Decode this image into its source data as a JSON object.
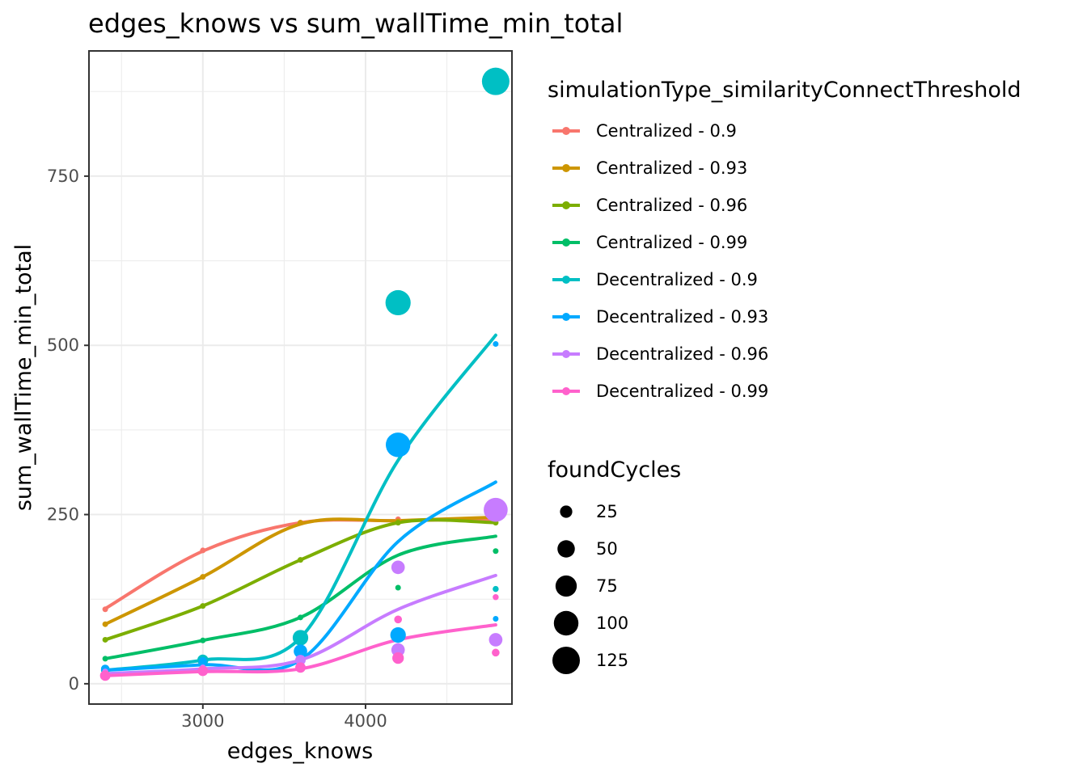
{
  "chart_data": {
    "type": "scatter",
    "title": "edges_knows  vs  sum_wallTime_min_total",
    "xlabel": "edges_knows",
    "ylabel": "sum_wallTime_min_total",
    "xlim": [
      2300,
      4900
    ],
    "ylim": [
      -30,
      935
    ],
    "x_ticks": [
      3000,
      4000
    ],
    "x_tick_labels": [
      "3000",
      "4000"
    ],
    "y_ticks": [
      0,
      250,
      500,
      750
    ],
    "y_tick_labels": [
      "0",
      "250",
      "500",
      "750"
    ],
    "grid": true,
    "x": [
      2400,
      3000,
      3600,
      4200,
      4800
    ],
    "color_legend": {
      "title": "simulationType_similarityConnectThreshold",
      "placement": "right"
    },
    "size_legend": {
      "title": "foundCycles",
      "entries": [
        {
          "label": "25",
          "value": 25
        },
        {
          "label": "50",
          "value": 50
        },
        {
          "label": "75",
          "value": 75
        },
        {
          "label": "100",
          "value": 100
        },
        {
          "label": "125",
          "value": 125
        }
      ]
    },
    "series": [
      {
        "name": "Centralized - 0.9",
        "color": "#F8766D",
        "points": [
          {
            "x": 2400,
            "y": 110,
            "size": 3
          },
          {
            "x": 3000,
            "y": 197,
            "size": 3
          },
          {
            "x": 3600,
            "y": 238,
            "size": 3
          },
          {
            "x": 4200,
            "y": 243,
            "size": 3
          },
          {
            "x": 4800,
            "y": 243,
            "size": 3
          }
        ],
        "smooth": [
          111,
          196,
          238,
          241,
          243
        ]
      },
      {
        "name": "Centralized - 0.93",
        "color": "#CD9600",
        "points": [
          {
            "x": 2400,
            "y": 88,
            "size": 3
          },
          {
            "x": 3000,
            "y": 158,
            "size": 3
          },
          {
            "x": 3600,
            "y": 238,
            "size": 3
          },
          {
            "x": 4200,
            "y": 240,
            "size": 3
          },
          {
            "x": 4800,
            "y": 244,
            "size": 3
          }
        ],
        "smooth": [
          88,
          158,
          236,
          241,
          246
        ]
      },
      {
        "name": "Centralized - 0.96",
        "color": "#7CAE00",
        "points": [
          {
            "x": 2400,
            "y": 65,
            "size": 3
          },
          {
            "x": 3000,
            "y": 115,
            "size": 3
          },
          {
            "x": 3600,
            "y": 183,
            "size": 3
          },
          {
            "x": 4200,
            "y": 238,
            "size": 3
          },
          {
            "x": 4800,
            "y": 238,
            "size": 3
          }
        ],
        "smooth": [
          65,
          115,
          183,
          238,
          238
        ]
      },
      {
        "name": "Centralized - 0.99",
        "color": "#00BE67",
        "points": [
          {
            "x": 2400,
            "y": 37,
            "size": 3
          },
          {
            "x": 3000,
            "y": 64,
            "size": 3
          },
          {
            "x": 3600,
            "y": 98,
            "size": 3
          },
          {
            "x": 4200,
            "y": 142,
            "size": 3
          },
          {
            "x": 4800,
            "y": 196,
            "size": 3
          }
        ],
        "smooth": [
          37,
          64,
          98,
          190,
          218
        ]
      },
      {
        "name": "Decentralized - 0.9",
        "color": "#00BFC4",
        "points": [
          {
            "x": 2400,
            "y": 20,
            "size": 12
          },
          {
            "x": 3000,
            "y": 35,
            "size": 20
          },
          {
            "x": 3600,
            "y": 68,
            "size": 40
          },
          {
            "x": 4200,
            "y": 563,
            "size": 105
          },
          {
            "x": 4800,
            "y": 890,
            "size": 125
          },
          {
            "x": 4800,
            "y": 140,
            "size": 6
          }
        ],
        "smooth": [
          20,
          35,
          68,
          330,
          515
        ]
      },
      {
        "name": "Decentralized - 0.93",
        "color": "#00A9FF",
        "points": [
          {
            "x": 2400,
            "y": 22,
            "size": 12
          },
          {
            "x": 3000,
            "y": 33,
            "size": 12
          },
          {
            "x": 3600,
            "y": 48,
            "size": 30
          },
          {
            "x": 4200,
            "y": 353,
            "size": 100
          },
          {
            "x": 4200,
            "y": 72,
            "size": 40
          },
          {
            "x": 4800,
            "y": 502,
            "size": 5
          },
          {
            "x": 4800,
            "y": 96,
            "size": 5
          }
        ],
        "smooth": [
          20,
          28,
          35,
          210,
          298
        ]
      },
      {
        "name": "Decentralized - 0.96",
        "color": "#C77CFF",
        "points": [
          {
            "x": 2400,
            "y": 18,
            "size": 6
          },
          {
            "x": 3000,
            "y": 24,
            "size": 6
          },
          {
            "x": 3600,
            "y": 35,
            "size": 18
          },
          {
            "x": 4200,
            "y": 172,
            "size": 30
          },
          {
            "x": 4200,
            "y": 50,
            "size": 30
          },
          {
            "x": 4800,
            "y": 257,
            "size": 95
          },
          {
            "x": 4800,
            "y": 65,
            "size": 30
          }
        ],
        "smooth": [
          15,
          22,
          35,
          110,
          160
        ]
      },
      {
        "name": "Decentralized - 0.99",
        "color": "#FF61CC",
        "points": [
          {
            "x": 2400,
            "y": 12,
            "size": 18
          },
          {
            "x": 3000,
            "y": 19,
            "size": 18
          },
          {
            "x": 3600,
            "y": 24,
            "size": 18
          },
          {
            "x": 4200,
            "y": 95,
            "size": 10
          },
          {
            "x": 4200,
            "y": 38,
            "size": 22
          },
          {
            "x": 4800,
            "y": 128,
            "size": 6
          },
          {
            "x": 4800,
            "y": 46,
            "size": 10
          }
        ],
        "smooth": [
          12,
          18,
          22,
          65,
          87
        ]
      }
    ]
  }
}
